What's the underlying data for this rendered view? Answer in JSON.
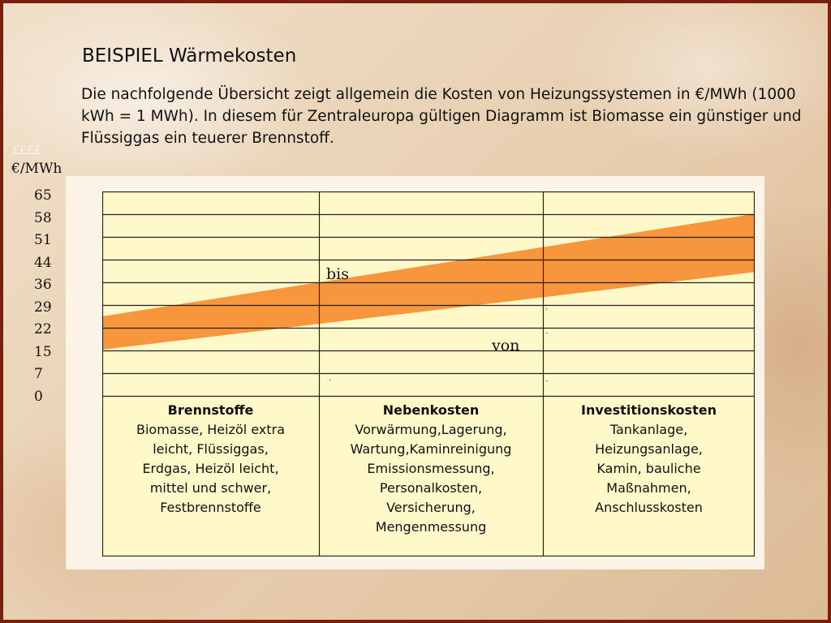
{
  "slide": {
    "title": "BEISPIEL  Wärmekosten",
    "intro": "Die nachfolgende Übersicht zeigt allgemein die Kosten von Heizungssystemen in €/MWh (1000 kWh = 1 MWh). In diesem für Zentraleuropa gültigen Diagramm ist Biomasse ein günstiger und Flüssiggas ein teuerer Brennstoff."
  },
  "chart_data": {
    "type": "area",
    "title": "",
    "unit_label": "€/MWh",
    "unit_label_faint": "££££",
    "yticks": [
      "65",
      "58",
      "51",
      "44",
      "36",
      "29",
      "22",
      "15",
      "7",
      "0"
    ],
    "categories": [
      {
        "name": "Brennstoffe",
        "items": [
          "Biomasse, Heizöl extra",
          "leicht, Flüssiggas,",
          "Erdgas, Heizöl leicht,",
          "mittel und schwer,",
          "Festbrennstoffe"
        ]
      },
      {
        "name": "Nebenkosten",
        "items": [
          "Vorwärmung,Lagerung,",
          "Wartung,Kaminreinigung",
          "Emissionsmessung,",
          "Personalkosten,",
          "Versicherung,",
          "Mengenmessung"
        ]
      },
      {
        "name": "Investitionskosten",
        "items": [
          "Tankanlage,",
          "Heizungsanlage,",
          "Kamin, bauliche",
          "Maßnahmen,",
          "Anschlusskosten"
        ]
      }
    ],
    "band": {
      "upper_label": "bis",
      "lower_label": "von",
      "x": [
        0,
        3
      ],
      "upper": [
        24,
        61
      ],
      "lower": [
        12,
        40
      ]
    },
    "ylim": [
      0,
      65
    ],
    "grid": true,
    "colors": {
      "band": "#f7963c",
      "plot_background": "#fff8c8",
      "grid": "#222222"
    }
  }
}
